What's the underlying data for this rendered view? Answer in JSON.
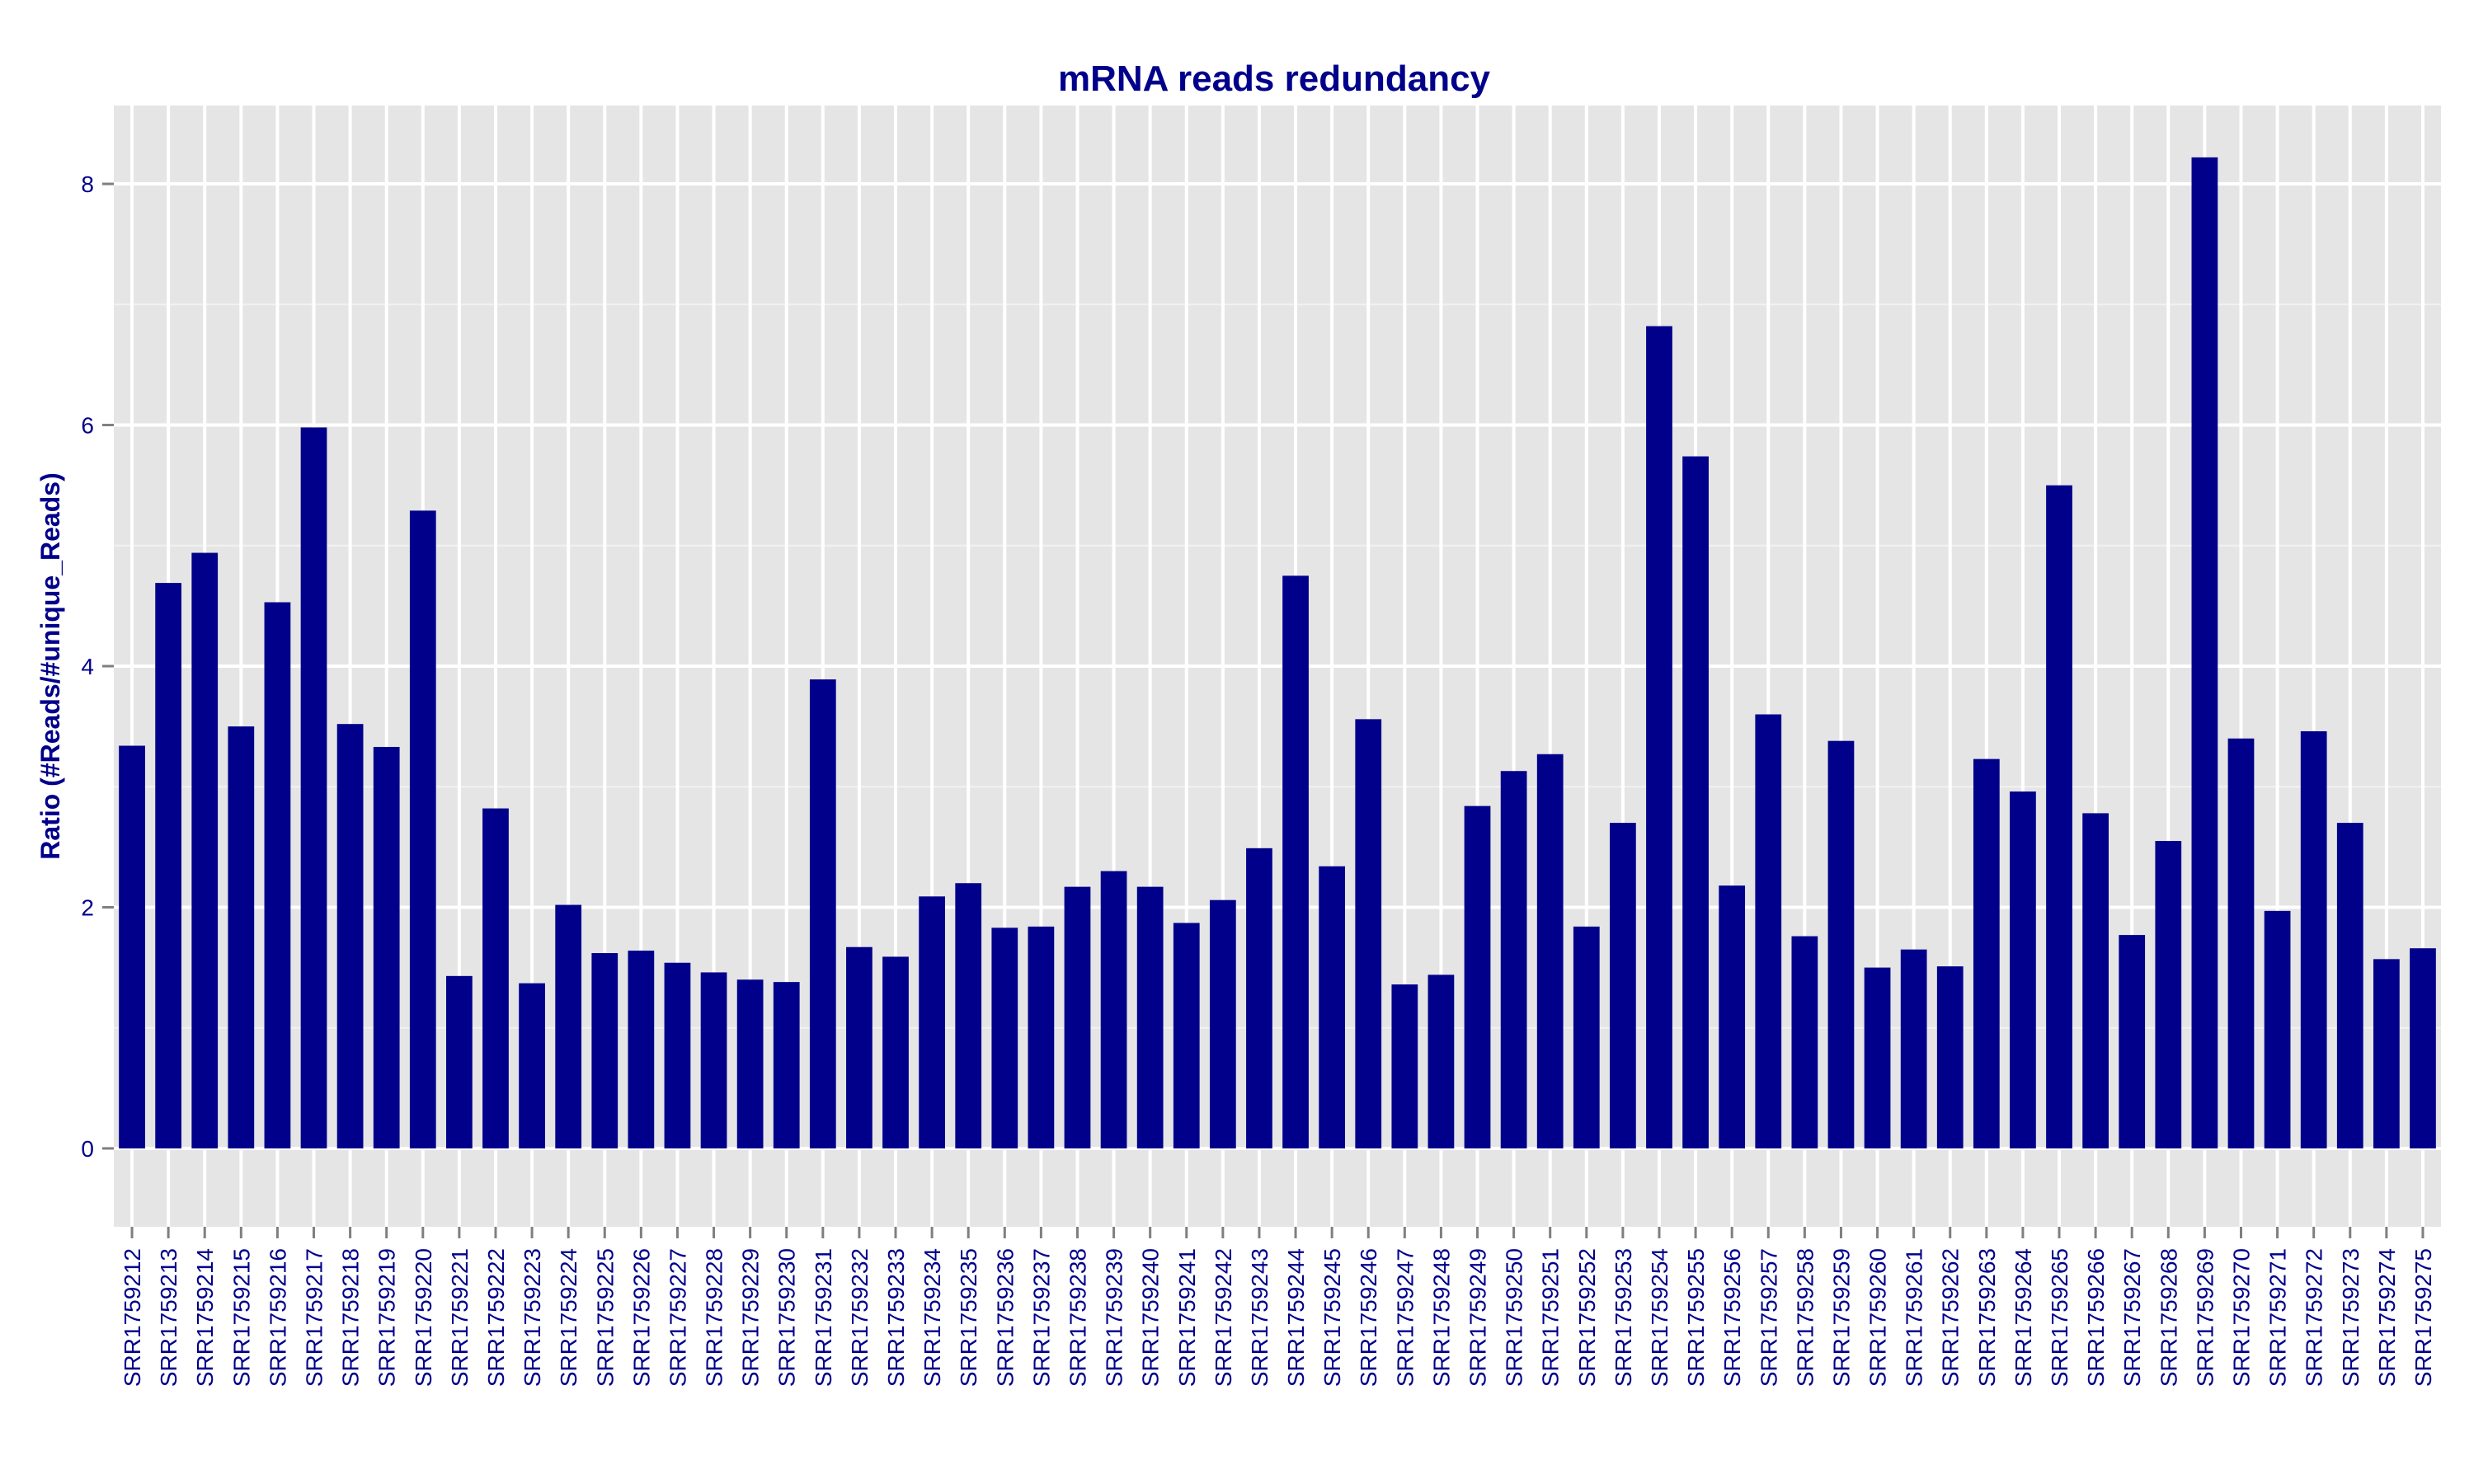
{
  "chart_data": {
    "type": "bar",
    "title": "mRNA reads redundancy",
    "xlabel": "",
    "ylabel": "Ratio (#Reads/#unique_Reads)",
    "ylim": [
      -0.65,
      8.65
    ],
    "yticks": [
      0,
      2,
      4,
      6,
      8
    ],
    "grid": true,
    "legend": "none",
    "colors": {
      "bar": "#00008b",
      "panel": "#e5e5e5",
      "grid": "#ffffff",
      "text": "#00008b",
      "tick": "#7f7f7f"
    },
    "categories": [
      "SRR1759212",
      "SRR1759213",
      "SRR1759214",
      "SRR1759215",
      "SRR1759216",
      "SRR1759217",
      "SRR1759218",
      "SRR1759219",
      "SRR1759220",
      "SRR1759221",
      "SRR1759222",
      "SRR1759223",
      "SRR1759224",
      "SRR1759225",
      "SRR1759226",
      "SRR1759227",
      "SRR1759228",
      "SRR1759229",
      "SRR1759230",
      "SRR1759231",
      "SRR1759232",
      "SRR1759233",
      "SRR1759234",
      "SRR1759235",
      "SRR1759236",
      "SRR1759237",
      "SRR1759238",
      "SRR1759239",
      "SRR1759240",
      "SRR1759241",
      "SRR1759242",
      "SRR1759243",
      "SRR1759244",
      "SRR1759245",
      "SRR1759246",
      "SRR1759247",
      "SRR1759248",
      "SRR1759249",
      "SRR1759250",
      "SRR1759251",
      "SRR1759252",
      "SRR1759253",
      "SRR1759254",
      "SRR1759255",
      "SRR1759256",
      "SRR1759257",
      "SRR1759258",
      "SRR1759259",
      "SRR1759260",
      "SRR1759261",
      "SRR1759262",
      "SRR1759263",
      "SRR1759264",
      "SRR1759265",
      "SRR1759266",
      "SRR1759267",
      "SRR1759268",
      "SRR1759269",
      "SRR1759270",
      "SRR1759271",
      "SRR1759272",
      "SRR1759273",
      "SRR1759274",
      "SRR1759275"
    ],
    "values": [
      3.34,
      4.69,
      4.94,
      3.5,
      4.53,
      5.98,
      3.52,
      3.33,
      5.29,
      1.43,
      2.82,
      1.37,
      2.02,
      1.62,
      1.64,
      1.54,
      1.46,
      1.4,
      1.38,
      3.89,
      1.67,
      1.59,
      2.09,
      2.2,
      1.83,
      1.84,
      2.17,
      2.3,
      2.17,
      1.87,
      2.06,
      2.49,
      4.75,
      2.34,
      3.56,
      1.36,
      1.44,
      2.84,
      3.13,
      3.27,
      1.84,
      2.7,
      6.82,
      5.74,
      2.18,
      3.6,
      1.76,
      3.38,
      1.5,
      1.65,
      1.51,
      3.23,
      2.96,
      5.5,
      2.78,
      1.77,
      2.55,
      8.22,
      3.4,
      1.97,
      3.46,
      2.7,
      1.57,
      1.66
    ]
  }
}
